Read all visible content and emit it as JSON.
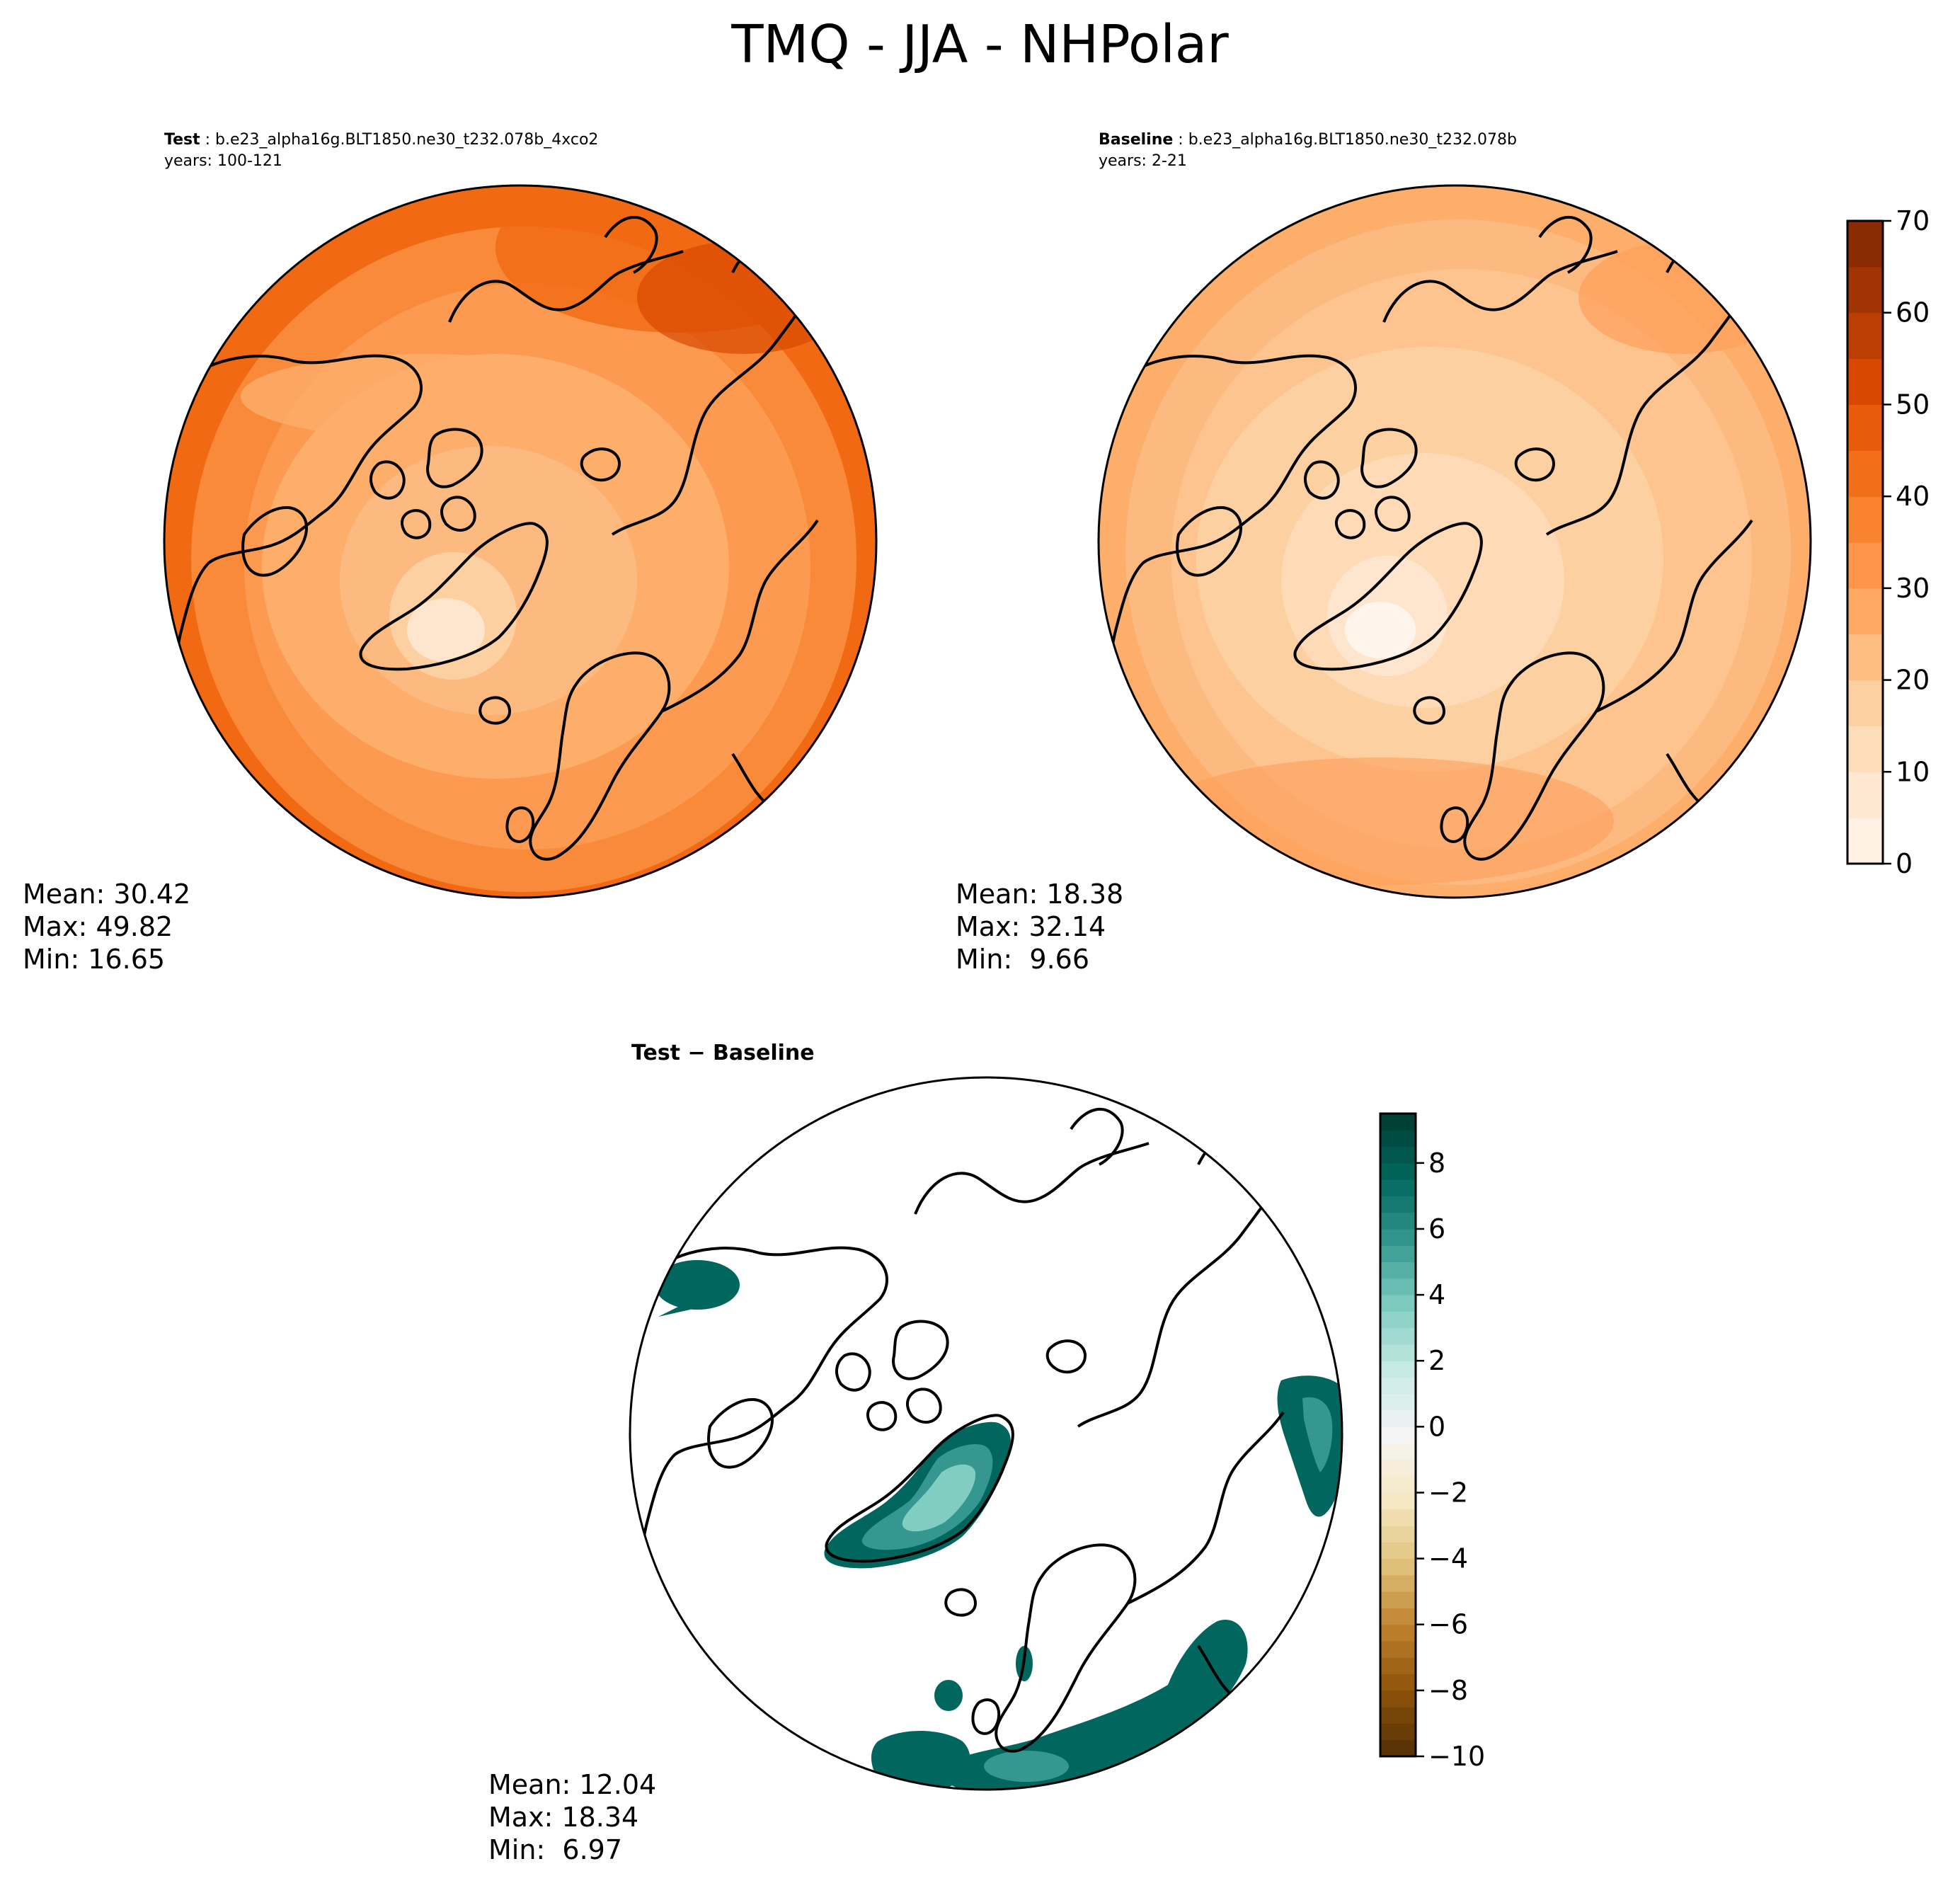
{
  "figure": {
    "title": "TMQ - JJA - NHPolar"
  },
  "panels": [
    {
      "id": "test",
      "label": "Test",
      "case": "b.e23_alpha16g.BLT1850.ne30_t232.078b_4xco2",
      "years": "years: 100-121",
      "stats": {
        "mean": "Mean: 30.42",
        "max": "Max: 49.82",
        "min": "Min: 16.65"
      }
    },
    {
      "id": "baseline",
      "label": "Baseline",
      "case": "b.e23_alpha16g.BLT1850.ne30_t232.078b",
      "years": "years: 2-21",
      "stats": {
        "mean": "Mean: 18.38",
        "max": "Max: 32.14",
        "min": "Min:  9.66"
      }
    },
    {
      "id": "diff",
      "label": "Test − Baseline",
      "stats": {
        "mean": "Mean: 12.04",
        "max": "Max: 18.34",
        "min": "Min:  6.97"
      }
    }
  ],
  "chart_data": [
    {
      "type": "heatmap",
      "projection": "north-polar-stereographic",
      "field": "TMQ",
      "colorbar": {
        "range": [
          0,
          70
        ],
        "ticks": [
          0,
          10,
          20,
          30,
          40,
          50,
          60,
          70
        ],
        "colormap": "oranges"
      },
      "panels": [
        {
          "name": "Test",
          "mean": 30.42,
          "max": 49.82,
          "min": 16.65
        },
        {
          "name": "Baseline",
          "mean": 18.38,
          "max": 32.14,
          "min": 9.66
        }
      ]
    },
    {
      "type": "heatmap",
      "projection": "north-polar-stereographic",
      "field": "TMQ difference",
      "colorbar": {
        "range": [
          -10,
          9.5
        ],
        "ticks": [
          -10,
          -8,
          -6,
          -4,
          -2,
          0,
          2,
          4,
          6,
          8
        ],
        "colormap": "brown-white-teal"
      },
      "panels": [
        {
          "name": "Test − Baseline",
          "mean": 12.04,
          "max": 18.34,
          "min": 6.97
        }
      ]
    }
  ],
  "colors": {
    "oranges": [
      "#fff5eb",
      "#fee6ce",
      "#fdd0a2",
      "#fdae6b",
      "#fd8d3c",
      "#f16913",
      "#d94801",
      "#a63603",
      "#7f2704"
    ],
    "diverging": [
      "#543005",
      "#8c510a",
      "#bf812d",
      "#dfc27d",
      "#f6e8c3",
      "#f5f5f5",
      "#c7eae5",
      "#80cdc1",
      "#35978f",
      "#01665e",
      "#003c30"
    ]
  }
}
